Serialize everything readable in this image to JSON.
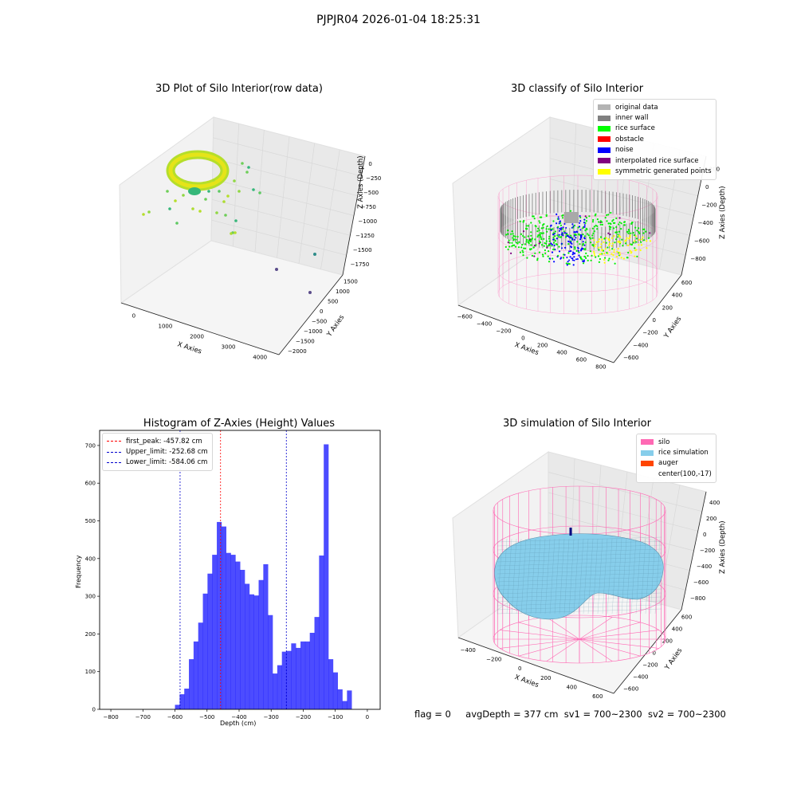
{
  "figure": {
    "suptitle": "PJPJR04 2026-01-04 18:25:31",
    "status": {
      "flag": "flag = 0",
      "avgDepth": "avgDepth = 377 cm",
      "sv1": "sv1 = 700~2300",
      "sv2": "sv2 = 700~2300"
    }
  },
  "chart_data": [
    {
      "type": "scatter",
      "title": "3D Plot of Silo Interior(row data)",
      "xlabel": "X Axies",
      "ylabel": "Y Axies",
      "zlabel": "Z Axies (Depth)",
      "x_ticks": [
        "0",
        "1000",
        "2000",
        "3000",
        "4000"
      ],
      "y_ticks": [
        "1500",
        "1000",
        "500",
        "0",
        "−500",
        "−1000",
        "−1500",
        "−2000"
      ],
      "z_ticks": [
        "0",
        "−250",
        "−500",
        "−750",
        "−1000",
        "−1250",
        "−1500",
        "−1750"
      ],
      "colormap": "viridis",
      "description_points": [
        {
          "x": 3200,
          "y": -1600,
          "z": -1600
        },
        {
          "x": 3000,
          "y": -1400,
          "z": -1450
        },
        {
          "x": 4200,
          "y": -500,
          "z": -1150
        }
      ]
    },
    {
      "type": "scatter",
      "title": "3D classify of Silo Interior",
      "xlabel": "X Axies",
      "ylabel": "Y Axies",
      "zlabel": "Z Axies (Depth)",
      "x_ticks": [
        "−600",
        "−400",
        "−200",
        "0",
        "200",
        "400",
        "600",
        "800"
      ],
      "y_ticks": [
        "600",
        "400",
        "200",
        "0",
        "−200",
        "−400",
        "−600"
      ],
      "z_ticks": [
        "200",
        "0",
        "−200",
        "−400",
        "−600",
        "−800"
      ],
      "legend": [
        {
          "label": "original data",
          "color": "#b3b3b3"
        },
        {
          "label": "inner wall",
          "color": "#808080"
        },
        {
          "label": "rice surface",
          "color": "#00ff00"
        },
        {
          "label": "obstacle",
          "color": "#ff0000"
        },
        {
          "label": "noise",
          "color": "#0000ff"
        },
        {
          "label": "interpolated rice surface",
          "color": "#800080"
        },
        {
          "label": "symmetric generated points",
          "color": "#ffff00"
        }
      ]
    },
    {
      "type": "bar",
      "title": "Histogram of Z-Axies (Height) Values",
      "xlabel": "Depth (cm)",
      "ylabel": "Frequency",
      "xlim": [
        -835,
        40
      ],
      "ylim": [
        0,
        740
      ],
      "x_ticks": [
        -800,
        -700,
        -600,
        -500,
        -400,
        -300,
        -200,
        -100,
        0
      ],
      "y_ticks": [
        0,
        100,
        200,
        300,
        400,
        500,
        600,
        700
      ],
      "bar_color": "#0000ff",
      "bin_start": -600,
      "bin_width": 14.5,
      "values": [
        12,
        40,
        55,
        133,
        180,
        230,
        307,
        360,
        410,
        497,
        485,
        415,
        410,
        392,
        370,
        333,
        305,
        302,
        343,
        385,
        250,
        95,
        117,
        153,
        155,
        175,
        163,
        180,
        180,
        203,
        245,
        408,
        703,
        133,
        98,
        53,
        22,
        50
      ],
      "lines": [
        {
          "label": "first_peak: -457.82 cm",
          "x": -457.82,
          "color": "#ff0000"
        },
        {
          "label": "Upper_limit: -252.68 cm",
          "x": -252.68,
          "color": "#0000cd"
        },
        {
          "label": "Lower_limit: -584.06 cm",
          "x": -584.06,
          "color": "#0000cd"
        }
      ]
    },
    {
      "type": "scatter",
      "title": "3D simulation of Silo Interior",
      "xlabel": "X Axies",
      "ylabel": "Y Axies",
      "zlabel": "Z Axies (Depth)",
      "x_ticks": [
        "−400",
        "−200",
        "0",
        "200",
        "400",
        "600"
      ],
      "y_ticks": [
        "600",
        "400",
        "200",
        "0",
        "−200",
        "−400",
        "−600"
      ],
      "z_ticks": [
        "400",
        "200",
        "0",
        "−200",
        "−400",
        "−600",
        "−800"
      ],
      "legend": [
        {
          "label": "silo",
          "color": "#ff69b4"
        },
        {
          "label": "rice simulation",
          "color": "#87ceeb"
        },
        {
          "label": "auger",
          "color": "#ff4500"
        },
        {
          "label": "center(100,-17)",
          "color": ""
        }
      ]
    }
  ]
}
